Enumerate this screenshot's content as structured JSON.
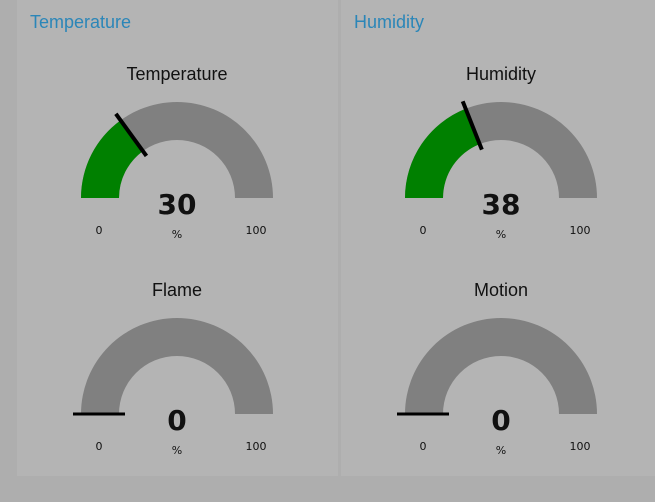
{
  "groups": [
    {
      "title": "Temperature"
    },
    {
      "title": "Humidity"
    }
  ],
  "gauges": [
    {
      "title": "Temperature",
      "value": "30",
      "unit": "%",
      "min": "0",
      "max": "100"
    },
    {
      "title": "Humidity",
      "value": "38",
      "unit": "%",
      "min": "0",
      "max": "100"
    },
    {
      "title": "Flame",
      "value": "0",
      "unit": "%",
      "min": "0",
      "max": "100"
    },
    {
      "title": "Motion",
      "value": "0",
      "unit": "%",
      "min": "0",
      "max": "100"
    }
  ],
  "colors": {
    "fill": "#008000",
    "track": "#808080",
    "needle": "#000000",
    "group_title": "#2b86b8"
  }
}
